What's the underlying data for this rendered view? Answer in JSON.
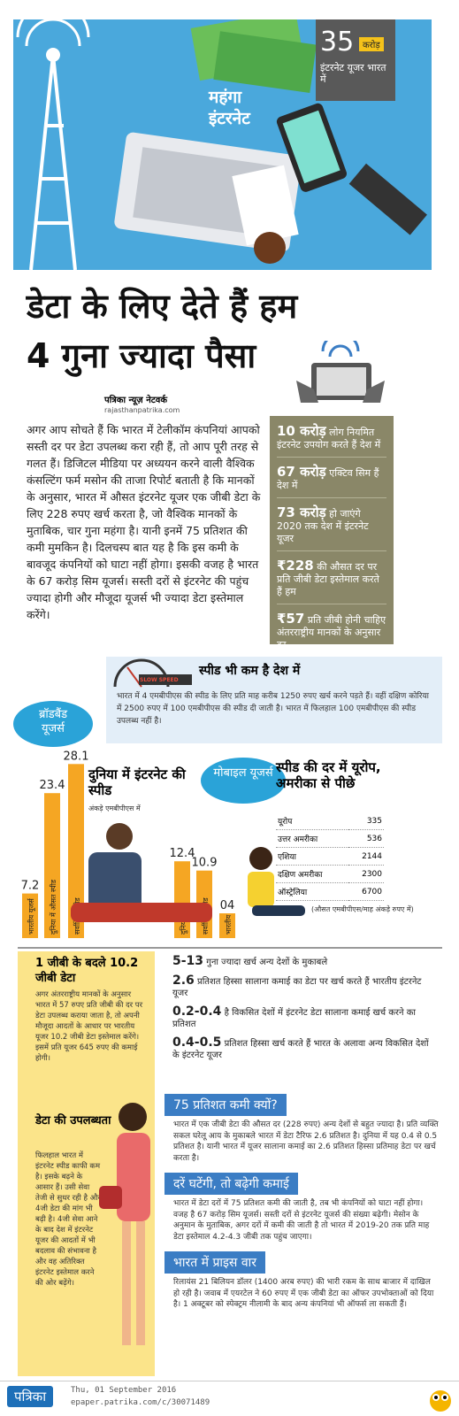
{
  "header": {
    "count": "35",
    "count_unit": "करोड़",
    "count_label": "इंटरनेट यूजर भारत में",
    "tag": "महंगा इंटरनेट"
  },
  "headline": "डेटा के लिए देते हैं हम 4 गुना ज्यादा पैसा",
  "byline": {
    "network": "पत्रिका न्यूज़ नेटवर्क",
    "site": "rajasthanpatrika.com"
  },
  "intro": "अगर आप सोचते हैं कि भारत में टेलीकॉम कंपनियां आपको सस्ती दर पर डेटा उपलब्ध करा रही हैं, तो आप पूरी तरह से गलत हैं। डिजिटल मीडिया पर अध्ययन करने वाली वैश्विक कंसल्टिंग फर्म मसोन की ताजा रिपोर्ट बताती है कि मानकों के अनुसार, भारत में औसत इंटरनेट यूजर एक जीबी डेटा के लिए 228 रुपए खर्च करता है, जो वैश्विक मानकों के मुताबिक, चार गुना महंगा है। यानी इनमें 75 प्रतिशत की कमी मुमकिन है। दिलचस्प बात यह है कि इस कमी के बावजूद कंपनियों को घाटा नहीं होगा। इसकी वजह है भारत के 67 करोड़ सिम यूजर्स। सस्ती दरों से इंटरनेट की पहुंच ज्यादा होगी और मौजूदा यूजर्स भी ज्यादा डेटा इस्तेमाल करेंगे।",
  "facts": [
    {
      "figure": "10 करोड़",
      "text": "लोग नियमित इंटरनेट उपयोग करते हैं देश में"
    },
    {
      "figure": "67 करोड़",
      "text": "एक्टिव सिम हैं देश में"
    },
    {
      "figure": "73 करोड़",
      "text": "हो जाएंगे 2020 तक देश में इंटरनेट यूजर"
    },
    {
      "figure": "₹228",
      "text": "की औसत दर पर प्रति जीबी डेटा इस्तेमाल करते हैं हम"
    },
    {
      "figure": "₹57",
      "text": "प्रति जीबी होनी चाहिए अंतरराष्ट्रीय मानकों के अनुसार दर"
    }
  ],
  "speed": {
    "badge": "SLOW SPEED",
    "title": "स्पीड भी कम है देश में",
    "text": "भारत में 4 एमबीपीएस की स्पीड के लिए प्रति माह करीब 1250 रुपए खर्च करने पड़ते हैं। वहीं दक्षिण कोरिया में 2500 रुपए में 100 एमबीपीएस की स्पीड दी जाती है। भारत में फिलहाल 100 एमबीपीएस की स्पीड उपलब्ध नहीं है।"
  },
  "speed_chart": {
    "title": "दुनिया में इंटरनेट की स्पीड",
    "subtitle": "अंकड़े एमबीपीएस में",
    "groups": [
      {
        "name": "ब्रॉडबैंड यूजर्स",
        "labels": [
          "भारतीय यूजर्स",
          "दुनिया में औसत स्पीड",
          "सर्वाधिक स्पीड"
        ],
        "values": [
          7.2,
          23.4,
          28.1
        ]
      },
      {
        "name": "मोबाइल यूजर्स",
        "labels": [
          "दुनिया में",
          "सर्वाधिक स्पीड",
          "भारतीय"
        ],
        "values": [
          12.4,
          10.9,
          4
        ],
        "value_labels": [
          "12.4",
          "10.9",
          "04"
        ]
      }
    ]
  },
  "rates": {
    "title": "स्पीड की दर में यूरोप, अमरीका से पीछे",
    "rows": [
      [
        "यूरोप",
        335
      ],
      [
        "उत्तर अमरीका",
        536
      ],
      [
        "एशिया",
        2144
      ],
      [
        "दक्षिण अमरीका",
        2300
      ],
      [
        "ऑस्ट्रेलिया",
        6700
      ]
    ],
    "note": "(औसत एमबीपीएस/माह अंकड़े रुपए में)"
  },
  "gb": {
    "title": "1 जीबी के बदले 10.2 जीबी डेटा",
    "text": "अगर अंतरराष्ट्रीय मानकों के अनुसार भारत में 57 रुपए प्रति जीबी की दर पर डेटा उपलब्ध कराया जाता है, तो अपनी मौजूदा आदतों के आधार पर भारतीय यूजर 10.2 जीबी डेटा इस्तेमाल करेंगे। इसमें प्रति यूजर 645 रुपए की कमाई होगी।"
  },
  "availability": {
    "title": "डेटा की उपलब्धता",
    "text": "फिलहाल भारत में इंटरनेट स्पीड काफी कम है। इसके बढ़ने के आसार हैं। उसी सेवा तेजी से सुधर रही है और 4जी डेटा की मांग भी बढ़ी है। 4जी सेवा आने के बाद देश में इंटरनेट यूजर की आदतों में भी बदलाव की संभावना है और वह अतिरिक्त इंटरनेट इस्तेमाल करने की ओर बढ़ेंगे।"
  },
  "stats": [
    {
      "figure": "5-13",
      "text": "गुना ज्यादा खर्च अन्य देशों के मुकाबले"
    },
    {
      "figure": "2.6",
      "text": "प्रतिशत हिस्सा सालाना कमाई का डेटा पर खर्च करते हैं भारतीय इंटरनेट यूजर"
    },
    {
      "figure": "0.2-0.4",
      "text": "है विकसित देशों में इंटरनेट डेटा सालाना कमाई खर्च करने का प्रतिशत"
    },
    {
      "figure": "0.4-0.5",
      "text": "प्रतिशत हिस्सा खर्च करते हैं भारत के अलावा अन्य विकसित देशों के इंटरनेट यूजर"
    }
  ],
  "sections": [
    {
      "title": "75 प्रतिशत कमी क्यों?",
      "text": "भारत में एक जीबी डेटा की औसत दर (228 रुपए) अन्य देशों से बहुत ज्यादा है। प्रति व्यक्ति सकल घरेलू आय के मुकाबले भारत में डेटा टैरिफ 2.6 प्रतिशत है। दुनिया में यह 0.4 से 0.5 प्रतिशत है। यानी भारत में यूजर सालाना कमाई का 2.6 प्रतिशत हिस्सा प्रतिमाह डेटा पर खर्च करता है।"
    },
    {
      "title": "दरें घटेंगी, तो बढ़ेगी कमाई",
      "text": "भारत में डेटा दरों में 75 प्रतिशत कमी की जाती है, तब भी कंपनियों को घाटा नहीं होगा। वजह है 67 करोड़ सिम यूजर्स। सस्ती दरों से इंटरनेट यूजर्स की संख्या बढ़ेगी। मेसोन के अनुमान के मुताबिक, अगर दरों में कमी की जाती है तो भारत में 2019-20 तक प्रति माह डेटा इस्तेमाल 4.2-4.3 जीबी तक पहुंच जाएगा।"
    },
    {
      "title": "भारत में प्राइस वार",
      "text": "रिलायंस 21 बिलियन डॉलर (1400 अरब रुपए) की भारी रकम के साथ बाजार में दाखिल हो रही है। जवाब में एयरटेल ने 60 रुपए में एक जीबी डेटा का ऑफर उपभोक्ताओं को दिया है। 1 अक्टूबर को स्पेक्ट्रम नीलामी के बाद अन्य कंपनियां भी ऑफर्स ला सकती हैं।"
    }
  ],
  "footer": {
    "brand": "पत्रिका",
    "date": "Thu, 01 September 2016",
    "url": "epaper.patrika.com/c/30071489"
  }
}
